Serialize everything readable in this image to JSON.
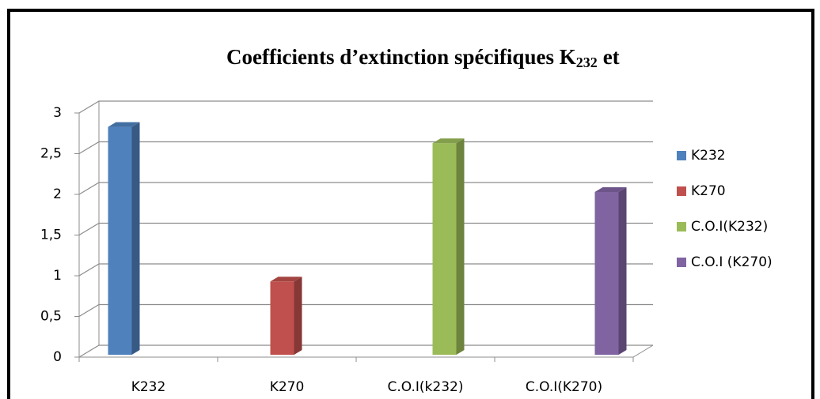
{
  "chart_data": {
    "type": "bar3d",
    "title": [
      "Coefficients d’extinction spécifiques K",
      "232",
      "et"
    ],
    "categories": [
      "K232",
      "K270",
      "C.O.I(k232)",
      "C.O.I(K270)"
    ],
    "series": [
      {
        "name": "K232",
        "color": "#4f81bd",
        "values": [
          2.8,
          null,
          null,
          null
        ]
      },
      {
        "name": "K270",
        "color": "#c0504d",
        "values": [
          null,
          0.9,
          null,
          null
        ]
      },
      {
        "name": "C.O.I(K232)",
        "color": "#9bbb59",
        "values": [
          null,
          null,
          2.6,
          null
        ]
      },
      {
        "name": "C.O.I (K270)",
        "color": "#8064a2",
        "values": [
          null,
          null,
          null,
          2.0
        ]
      }
    ],
    "ylim": [
      0,
      3
    ],
    "yticks": [
      0,
      {
        "value": 0.5,
        "label": "0,5"
      },
      1,
      {
        "value": 1.5,
        "label": "1,5"
      },
      2,
      {
        "value": 2.5,
        "label": "2,5"
      },
      3
    ],
    "grid": true,
    "legend": "right"
  }
}
